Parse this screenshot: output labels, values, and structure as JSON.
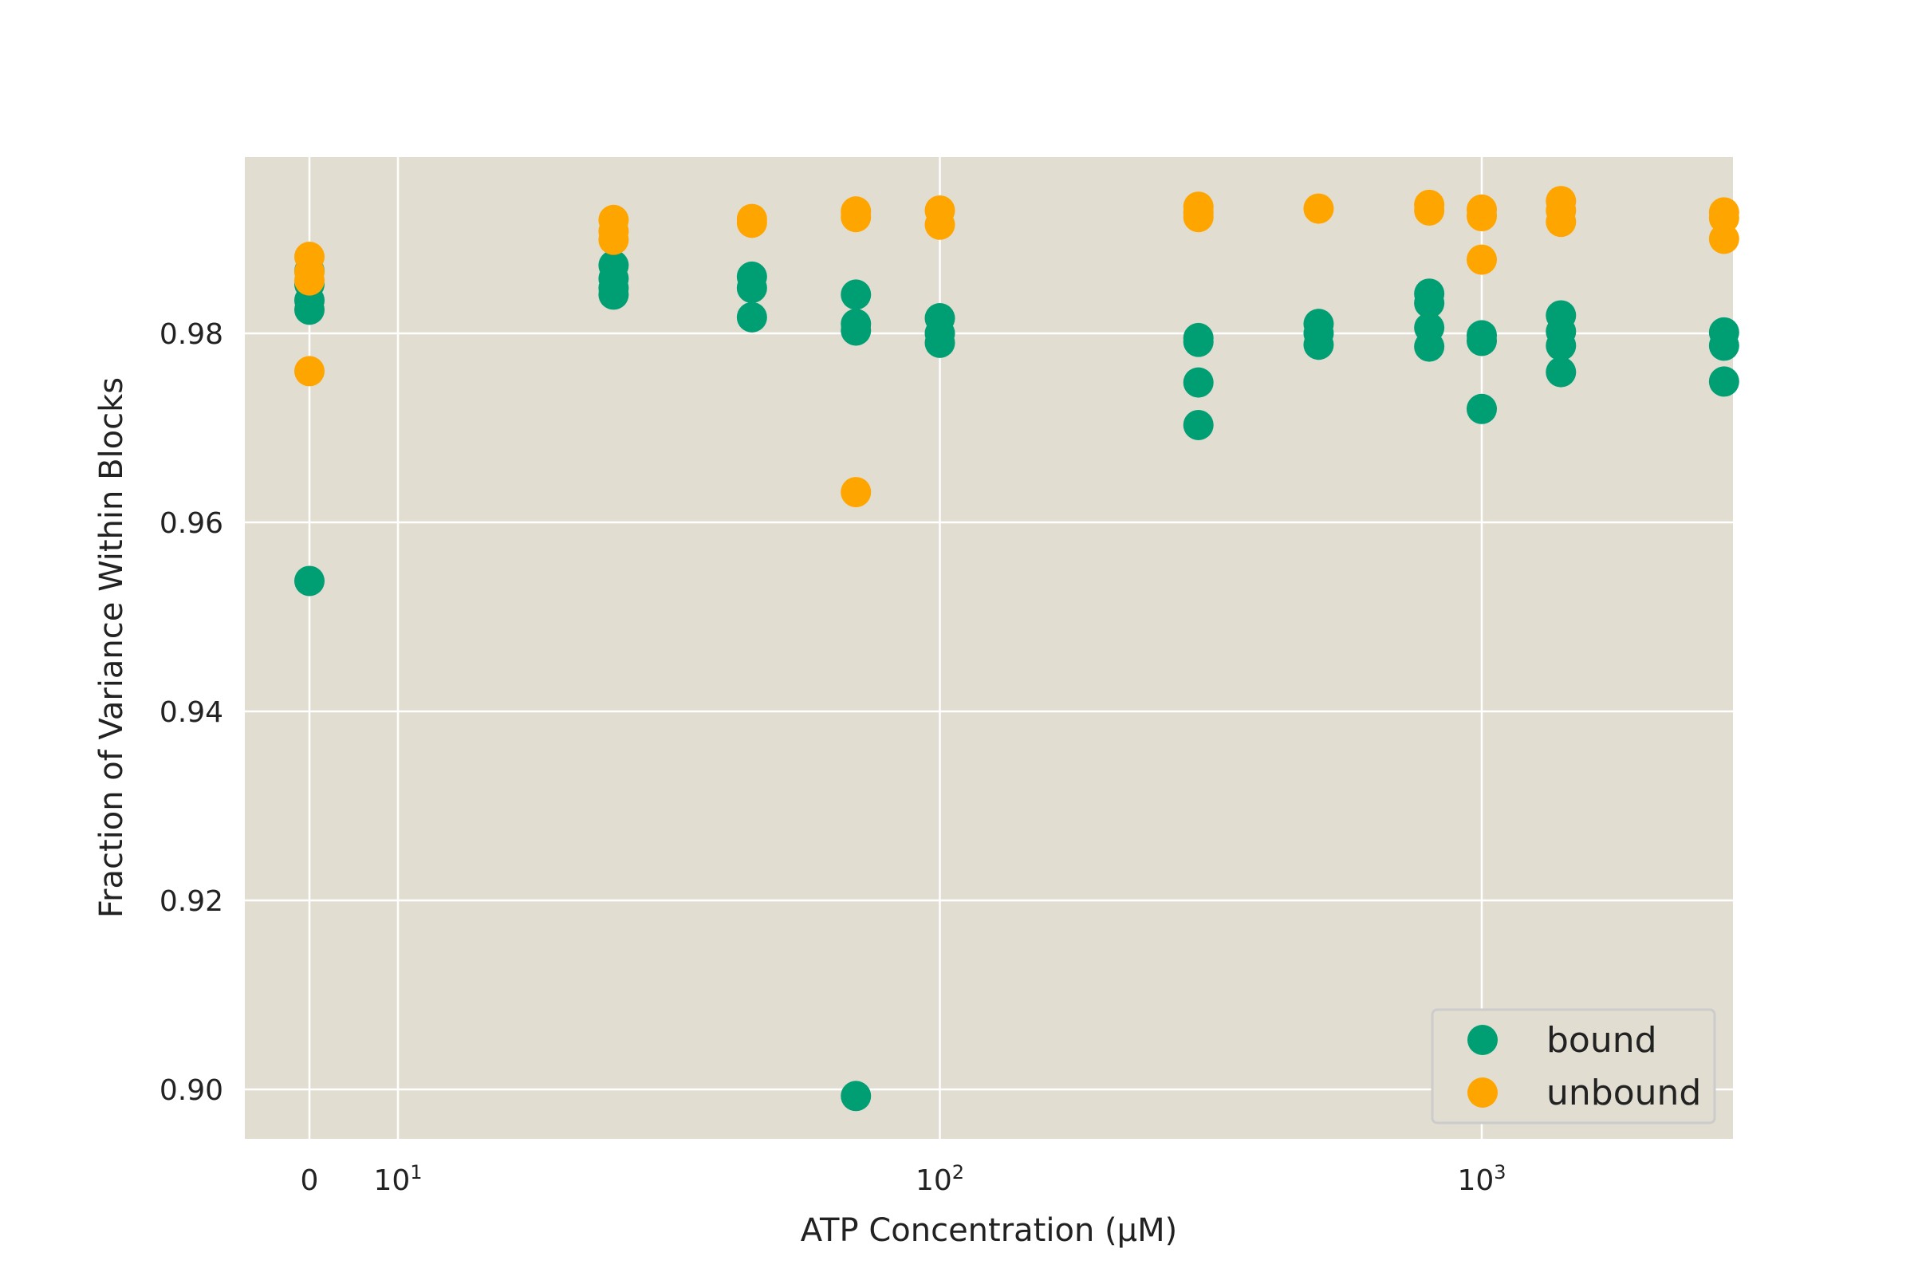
{
  "chart_data": {
    "type": "scatter",
    "title": "",
    "xlabel": "ATP Concentration (μM)",
    "ylabel": "Fraction of Variance Within Blocks",
    "x_scale": "symlog",
    "y_ticks": [
      "0.90",
      "0.92",
      "0.94",
      "0.96",
      "0.98"
    ],
    "y_tick_values": [
      0.9,
      0.92,
      0.94,
      0.96,
      0.98
    ],
    "ylim": [
      0.895,
      0.9985
    ],
    "x_ticks": [
      {
        "value": 0,
        "base": "0",
        "exp": ""
      },
      {
        "value": 10,
        "base": "10",
        "exp": "1"
      },
      {
        "value": 100,
        "base": "10",
        "exp": "2"
      },
      {
        "value": 1000,
        "base": "10",
        "exp": "3"
      }
    ],
    "grid": true,
    "legend_position": "lower-right",
    "background_color": "#e2ddd1",
    "series": [
      {
        "name": "bound",
        "color": "#009e73",
        "points": [
          {
            "x": 0,
            "y": 0.9866
          },
          {
            "x": 0,
            "y": 0.9852
          },
          {
            "x": 0,
            "y": 0.9835
          },
          {
            "x": 0,
            "y": 0.9825
          },
          {
            "x": 0,
            "y": 0.9538
          },
          {
            "x": 25,
            "y": 0.9872
          },
          {
            "x": 25,
            "y": 0.9858
          },
          {
            "x": 25,
            "y": 0.9848
          },
          {
            "x": 25,
            "y": 0.9841
          },
          {
            "x": 45,
            "y": 0.986
          },
          {
            "x": 45,
            "y": 0.9848
          },
          {
            "x": 45,
            "y": 0.9817
          },
          {
            "x": 70,
            "y": 0.9841
          },
          {
            "x": 70,
            "y": 0.981
          },
          {
            "x": 70,
            "y": 0.9803
          },
          {
            "x": 70,
            "y": 0.8993
          },
          {
            "x": 100,
            "y": 0.9816
          },
          {
            "x": 100,
            "y": 0.98
          },
          {
            "x": 100,
            "y": 0.979
          },
          {
            "x": 300,
            "y": 0.9795
          },
          {
            "x": 300,
            "y": 0.9791
          },
          {
            "x": 300,
            "y": 0.9748
          },
          {
            "x": 300,
            "y": 0.9703
          },
          {
            "x": 500,
            "y": 0.981
          },
          {
            "x": 500,
            "y": 0.98
          },
          {
            "x": 500,
            "y": 0.9788
          },
          {
            "x": 800,
            "y": 0.9842
          },
          {
            "x": 800,
            "y": 0.9832
          },
          {
            "x": 800,
            "y": 0.9806
          },
          {
            "x": 800,
            "y": 0.9786
          },
          {
            "x": 1000,
            "y": 0.9798
          },
          {
            "x": 1000,
            "y": 0.9792
          },
          {
            "x": 1000,
            "y": 0.972
          },
          {
            "x": 1400,
            "y": 0.9819
          },
          {
            "x": 1400,
            "y": 0.9802
          },
          {
            "x": 1400,
            "y": 0.9787
          },
          {
            "x": 1400,
            "y": 0.9759
          },
          {
            "x": 2800,
            "y": 0.9801
          },
          {
            "x": 2800,
            "y": 0.9787
          },
          {
            "x": 2800,
            "y": 0.9749
          }
        ]
      },
      {
        "name": "unbound",
        "color": "#ffa500",
        "points": [
          {
            "x": 0,
            "y": 0.9881
          },
          {
            "x": 0,
            "y": 0.9865
          },
          {
            "x": 0,
            "y": 0.9856
          },
          {
            "x": 0,
            "y": 0.976
          },
          {
            "x": 25,
            "y": 0.992
          },
          {
            "x": 25,
            "y": 0.9908
          },
          {
            "x": 25,
            "y": 0.9899
          },
          {
            "x": 45,
            "y": 0.9921
          },
          {
            "x": 45,
            "y": 0.9917
          },
          {
            "x": 70,
            "y": 0.9929
          },
          {
            "x": 70,
            "y": 0.9923
          },
          {
            "x": 70,
            "y": 0.9632
          },
          {
            "x": 100,
            "y": 0.993
          },
          {
            "x": 100,
            "y": 0.9915
          },
          {
            "x": 300,
            "y": 0.9934
          },
          {
            "x": 300,
            "y": 0.9928
          },
          {
            "x": 300,
            "y": 0.9923
          },
          {
            "x": 500,
            "y": 0.9932
          },
          {
            "x": 800,
            "y": 0.9936
          },
          {
            "x": 800,
            "y": 0.993
          },
          {
            "x": 1000,
            "y": 0.9931
          },
          {
            "x": 1000,
            "y": 0.9924
          },
          {
            "x": 1000,
            "y": 0.9878
          },
          {
            "x": 1400,
            "y": 0.994
          },
          {
            "x": 1400,
            "y": 0.993
          },
          {
            "x": 1400,
            "y": 0.9918
          },
          {
            "x": 2800,
            "y": 0.9928
          },
          {
            "x": 2800,
            "y": 0.9922
          },
          {
            "x": 2800,
            "y": 0.99
          }
        ]
      }
    ]
  }
}
